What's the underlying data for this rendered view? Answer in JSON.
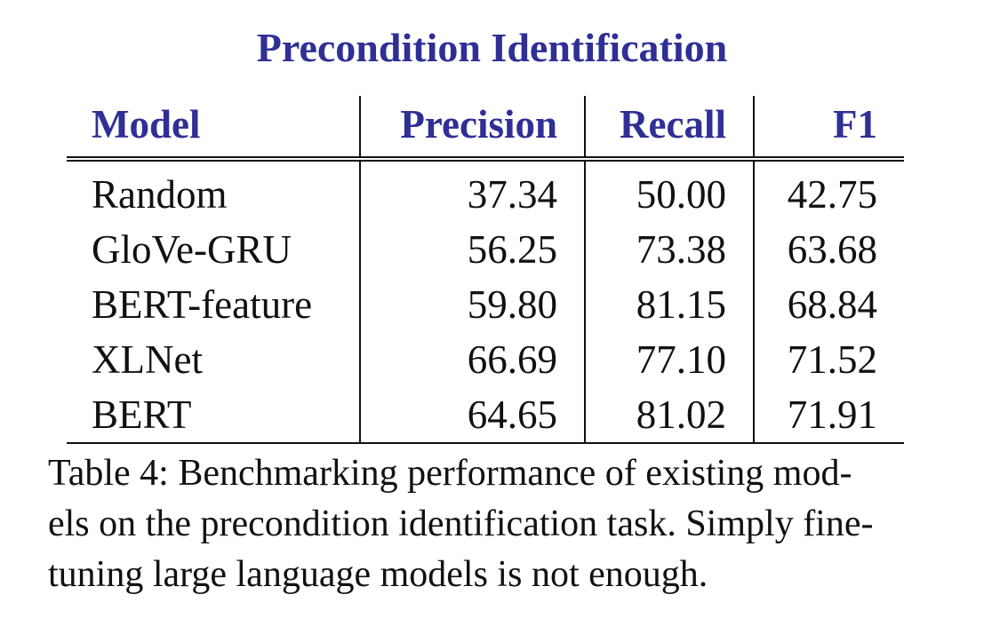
{
  "title": "Precondition Identification",
  "table": {
    "headers": [
      "Model",
      "Precision",
      "Recall",
      "F1"
    ],
    "rows": [
      [
        "Random",
        "37.34",
        "50.00",
        "42.75"
      ],
      [
        "GloVe-GRU",
        "56.25",
        "73.38",
        "63.68"
      ],
      [
        "BERT-feature",
        "59.80",
        "81.15",
        "68.84"
      ],
      [
        "XLNet",
        "66.69",
        "77.10",
        "71.52"
      ],
      [
        "BERT",
        "64.65",
        "81.02",
        "71.91"
      ]
    ]
  },
  "caption": {
    "line1": "Table 4: Benchmarking performance of existing mod-",
    "line2": "els on the precondition identification task. Simply fine-",
    "line3": "tuning large language models is not enough."
  },
  "colors": {
    "header": "#2f2f95",
    "text": "#111111"
  }
}
